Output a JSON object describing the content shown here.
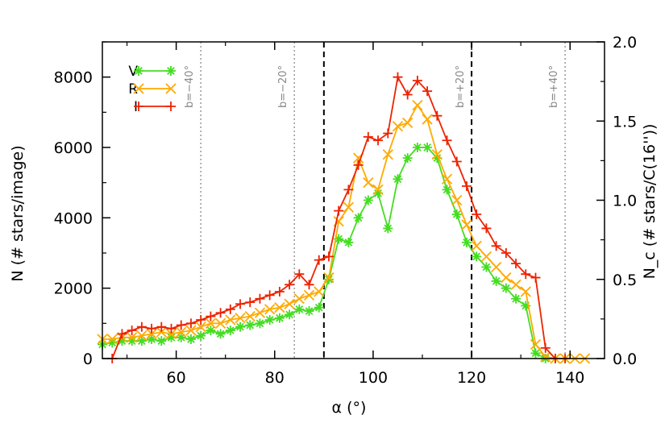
{
  "chart_data": {
    "type": "line",
    "xlabel": "α (°)",
    "ylabel": "N (# stars/image)",
    "y2label": "N_c (# stars/C(16''))",
    "xlim": [
      45,
      147
    ],
    "ylim": [
      0,
      9000
    ],
    "y2lim": [
      0,
      2.0
    ],
    "xticks": [
      60,
      80,
      100,
      120,
      140
    ],
    "yticks": [
      0,
      2000,
      4000,
      6000,
      8000
    ],
    "y2ticks": [
      0.0,
      0.5,
      1.0,
      1.5,
      2.0
    ],
    "y2tick_labels": [
      "0.0",
      "0.5",
      "1.0",
      "1.5",
      "2.0"
    ],
    "grid": false,
    "legend": "top-left",
    "reference_lines": [
      {
        "x": 65,
        "label": "b=−40°",
        "style": "dotted"
      },
      {
        "x": 84,
        "label": "b=−20°",
        "style": "dotted"
      },
      {
        "x": 90,
        "label": "",
        "style": "dashed"
      },
      {
        "x": 120,
        "label": "b=+20°",
        "style": "dashed"
      },
      {
        "x": 139,
        "label": "b=+40°",
        "style": "dotted"
      }
    ],
    "series": [
      {
        "name": "V",
        "color": "#44dd22",
        "marker": "asterisk",
        "x": [
          45,
          47,
          49,
          51,
          53,
          55,
          57,
          59,
          61,
          63,
          65,
          67,
          69,
          71,
          73,
          75,
          77,
          79,
          81,
          83,
          85,
          87,
          89,
          91,
          93,
          95,
          97,
          99,
          101,
          103,
          105,
          107,
          109,
          111,
          113,
          115,
          117,
          119,
          121,
          123,
          125,
          127,
          129,
          131,
          133,
          135,
          137,
          139
        ],
        "y": [
          400,
          450,
          500,
          500,
          500,
          550,
          500,
          600,
          600,
          550,
          650,
          800,
          700,
          800,
          900,
          950,
          1000,
          1100,
          1150,
          1250,
          1400,
          1350,
          1450,
          2250,
          3400,
          3300,
          4000,
          4500,
          4700,
          3700,
          5100,
          5700,
          6000,
          6000,
          5700,
          4800,
          4100,
          3300,
          2900,
          2600,
          2200,
          2000,
          1700,
          1500,
          150,
          0,
          0,
          0
        ]
      },
      {
        "name": "R",
        "color": "#ffaa00",
        "marker": "x",
        "x": [
          45,
          47,
          49,
          51,
          53,
          55,
          57,
          59,
          61,
          63,
          65,
          67,
          69,
          71,
          73,
          75,
          77,
          79,
          81,
          83,
          85,
          87,
          89,
          91,
          93,
          95,
          97,
          99,
          101,
          103,
          105,
          107,
          109,
          111,
          113,
          115,
          117,
          119,
          121,
          123,
          125,
          127,
          129,
          131,
          133,
          135,
          137,
          139,
          141,
          143
        ],
        "y": [
          550,
          550,
          600,
          600,
          650,
          700,
          750,
          700,
          750,
          800,
          900,
          1000,
          1000,
          1100,
          1150,
          1200,
          1300,
          1400,
          1450,
          1550,
          1700,
          1800,
          1900,
          2300,
          3900,
          4300,
          5700,
          5000,
          4800,
          5800,
          6600,
          6700,
          7200,
          6800,
          5800,
          5100,
          4500,
          3800,
          3200,
          2900,
          2600,
          2300,
          2100,
          1900,
          400,
          50,
          0,
          0,
          0,
          0
        ]
      },
      {
        "name": "I",
        "color": "#ee2200",
        "marker": "plus",
        "x": [
          47,
          49,
          51,
          53,
          55,
          57,
          59,
          61,
          63,
          65,
          67,
          69,
          71,
          73,
          75,
          77,
          79,
          81,
          83,
          85,
          87,
          89,
          91,
          93,
          95,
          97,
          99,
          101,
          103,
          105,
          107,
          109,
          111,
          113,
          115,
          117,
          119,
          121,
          123,
          125,
          127,
          129,
          131,
          133,
          135,
          137,
          139
        ],
        "y": [
          0,
          700,
          800,
          900,
          850,
          900,
          850,
          950,
          1000,
          1100,
          1200,
          1300,
          1400,
          1550,
          1600,
          1700,
          1800,
          1900,
          2100,
          2400,
          2100,
          2800,
          2900,
          4200,
          4800,
          5500,
          6300,
          6200,
          6400,
          8000,
          7500,
          7900,
          7600,
          6900,
          6200,
          5600,
          4900,
          4100,
          3700,
          3200,
          3000,
          2700,
          2400,
          2300,
          300,
          0,
          0
        ]
      }
    ]
  }
}
